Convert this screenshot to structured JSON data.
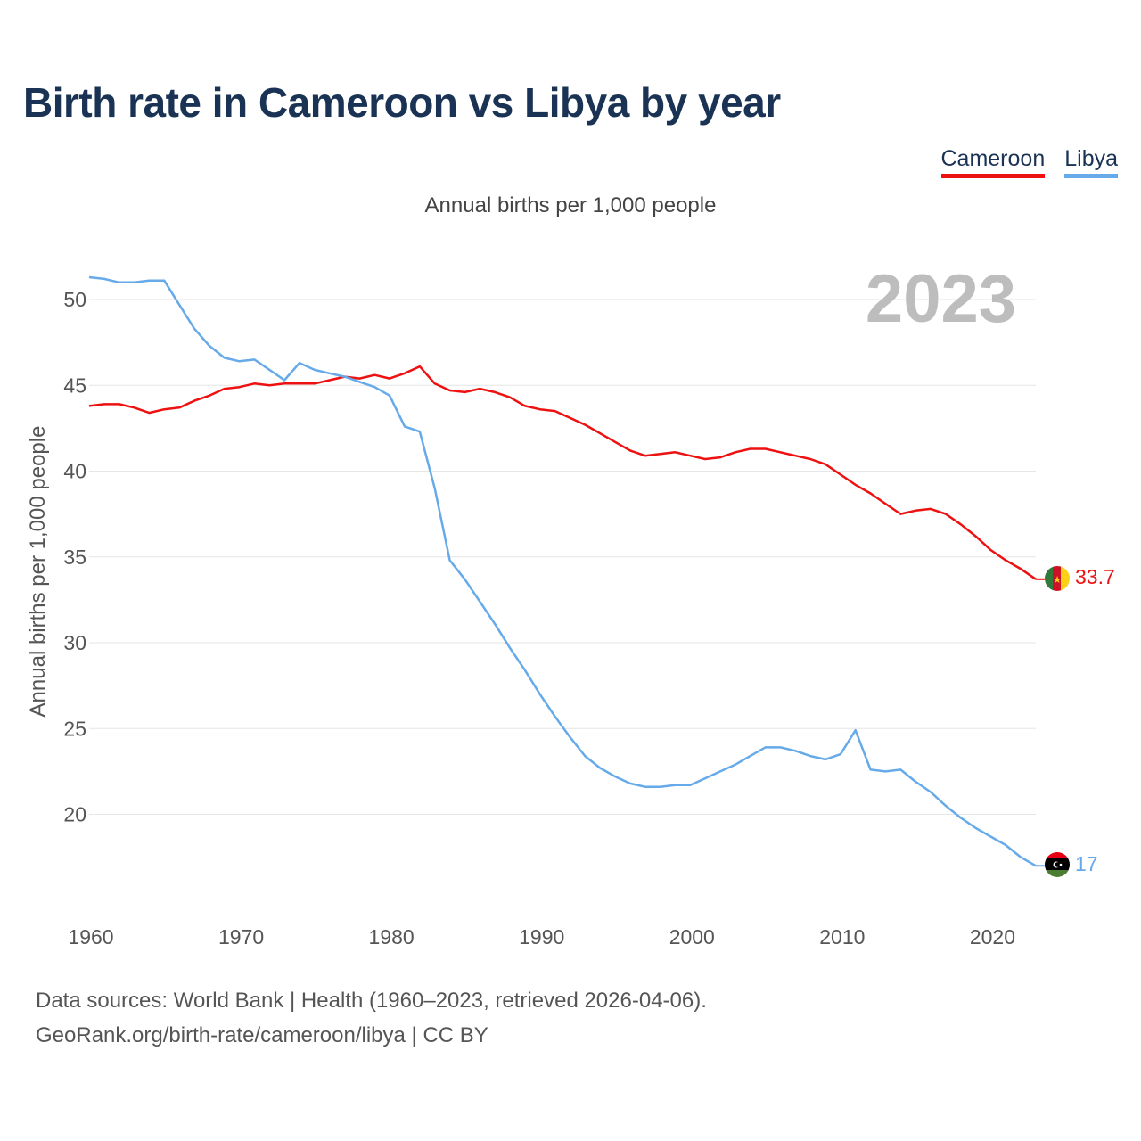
{
  "title": "Birth rate in Cameroon vs Libya by year",
  "subtitle": "Annual births per 1,000 people",
  "legend": [
    {
      "name": "Cameroon",
      "color": "#ee1111"
    },
    {
      "name": "Libya",
      "color": "#66aaea"
    }
  ],
  "footer": {
    "line1": "Data sources: World Bank | Health (1960–2023, retrieved 2026-04-06).",
    "line2": "GeoRank.org/birth-rate/cameroon/libya | CC BY"
  },
  "chart_data": {
    "type": "line",
    "title": "Birth rate in Cameroon vs Libya by year",
    "ylabel": "Annual births per 1,000 people",
    "xlabel": "",
    "current_year_label": "2023",
    "xlim": [
      1960,
      2023
    ],
    "ylim": [
      15,
      52
    ],
    "x_ticks": [
      1960,
      1970,
      1980,
      1990,
      2000,
      2010,
      2020
    ],
    "y_ticks": [
      20,
      25,
      30,
      35,
      40,
      45,
      50
    ],
    "grid": true,
    "x": [
      1960,
      1961,
      1962,
      1963,
      1964,
      1965,
      1966,
      1967,
      1968,
      1969,
      1970,
      1971,
      1972,
      1973,
      1974,
      1975,
      1976,
      1977,
      1978,
      1979,
      1980,
      1981,
      1982,
      1983,
      1984,
      1985,
      1986,
      1987,
      1988,
      1989,
      1990,
      1991,
      1992,
      1993,
      1994,
      1995,
      1996,
      1997,
      1998,
      1999,
      2000,
      2001,
      2002,
      2003,
      2004,
      2005,
      2006,
      2007,
      2008,
      2009,
      2010,
      2011,
      2012,
      2013,
      2014,
      2015,
      2016,
      2017,
      2018,
      2019,
      2020,
      2021,
      2022,
      2023
    ],
    "series": [
      {
        "name": "Cameroon",
        "color": "#ee1111",
        "end_label": "33.7",
        "values": [
          43.8,
          43.9,
          43.9,
          43.7,
          43.4,
          43.6,
          43.7,
          44.1,
          44.4,
          44.8,
          44.9,
          45.1,
          45.0,
          45.1,
          45.1,
          45.1,
          45.3,
          45.5,
          45.4,
          45.6,
          45.4,
          45.7,
          46.1,
          45.1,
          44.7,
          44.6,
          44.8,
          44.6,
          44.3,
          43.8,
          43.6,
          43.5,
          43.1,
          42.7,
          42.2,
          41.7,
          41.2,
          40.9,
          41.0,
          41.1,
          40.9,
          40.7,
          40.8,
          41.1,
          41.3,
          41.3,
          41.1,
          40.9,
          40.7,
          40.4,
          39.8,
          39.2,
          38.7,
          38.1,
          37.5,
          37.7,
          37.8,
          37.5,
          36.9,
          36.2,
          35.4,
          34.8,
          34.3,
          33.7
        ]
      },
      {
        "name": "Libya",
        "color": "#66aaea",
        "end_label": "17",
        "values": [
          51.3,
          51.2,
          51.0,
          51.0,
          51.1,
          51.1,
          49.7,
          48.3,
          47.3,
          46.6,
          46.4,
          46.5,
          45.9,
          45.3,
          46.3,
          45.9,
          45.7,
          45.5,
          45.2,
          44.9,
          44.4,
          42.6,
          42.3,
          39.0,
          34.8,
          33.7,
          32.4,
          31.1,
          29.7,
          28.4,
          27.0,
          25.7,
          24.5,
          23.4,
          22.7,
          22.2,
          21.8,
          21.6,
          21.6,
          21.7,
          21.7,
          22.1,
          22.5,
          22.9,
          23.4,
          23.9,
          23.9,
          23.7,
          23.4,
          23.2,
          23.5,
          24.9,
          22.6,
          22.5,
          22.6,
          21.9,
          21.3,
          20.5,
          19.8,
          19.2,
          18.7,
          18.2,
          17.5,
          17.0
        ]
      }
    ]
  }
}
